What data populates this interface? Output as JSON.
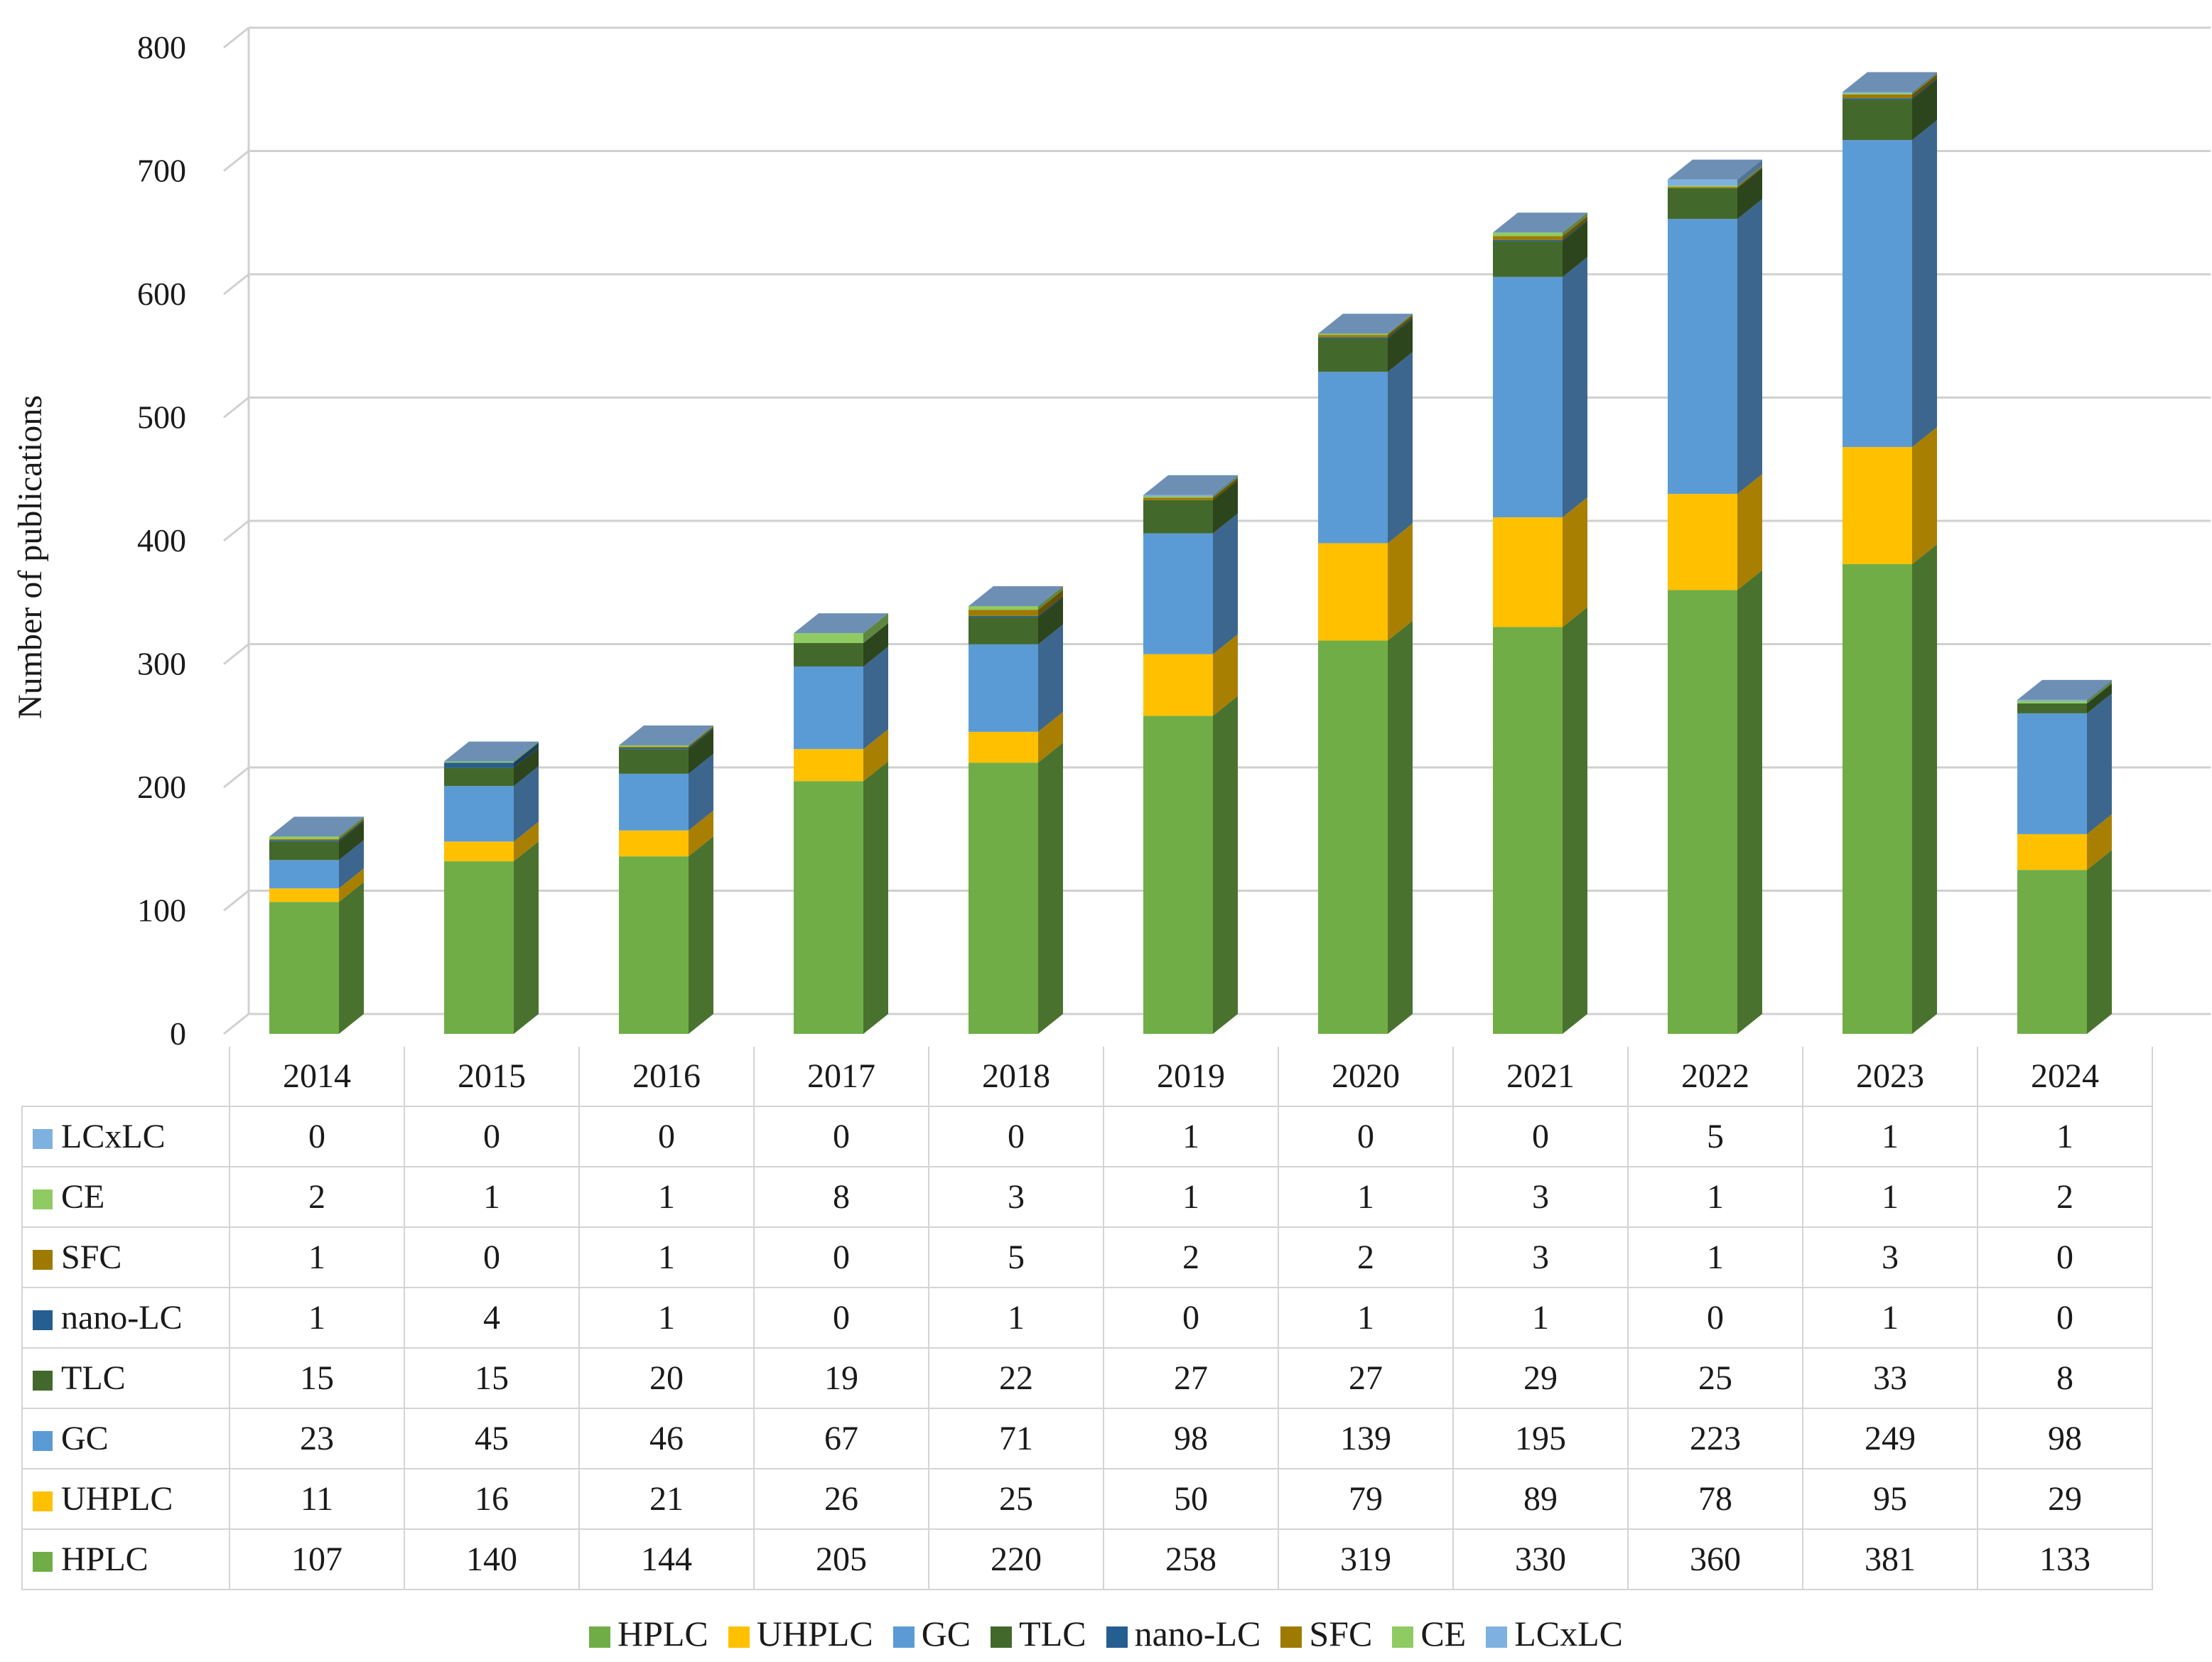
{
  "chart_data": {
    "type": "bar",
    "stacked": true,
    "ylabel": "Number of publications",
    "xlabel": "",
    "ylim": [
      0,
      800
    ],
    "yticks": [
      0,
      100,
      200,
      300,
      400,
      500,
      600,
      700,
      800
    ],
    "grid": true,
    "legend_position": "bottom",
    "categories": [
      "2014",
      "2015",
      "2016",
      "2017",
      "2018",
      "2019",
      "2020",
      "2021",
      "2022",
      "2023",
      "2024"
    ],
    "series": [
      {
        "name": "HPLC",
        "color": "#70AD47",
        "values": [
          107,
          140,
          144,
          205,
          220,
          258,
          319,
          330,
          360,
          381,
          133
        ]
      },
      {
        "name": "UHPLC",
        "color": "#FFC000",
        "values": [
          11,
          16,
          21,
          26,
          25,
          50,
          79,
          89,
          78,
          95,
          29
        ]
      },
      {
        "name": "GC",
        "color": "#5B9BD5",
        "values": [
          23,
          45,
          46,
          67,
          71,
          98,
          139,
          195,
          223,
          249,
          98
        ]
      },
      {
        "name": "TLC",
        "color": "#43682B",
        "values": [
          15,
          15,
          20,
          19,
          22,
          27,
          27,
          29,
          25,
          33,
          8
        ]
      },
      {
        "name": "nano-LC",
        "color": "#255E91",
        "values": [
          1,
          4,
          1,
          0,
          1,
          0,
          1,
          1,
          0,
          1,
          0
        ]
      },
      {
        "name": "SFC",
        "color": "#9E7A00",
        "values": [
          1,
          0,
          1,
          0,
          5,
          2,
          2,
          3,
          1,
          3,
          0
        ]
      },
      {
        "name": "CE",
        "color": "#8FCB62",
        "values": [
          2,
          1,
          1,
          8,
          3,
          1,
          1,
          3,
          1,
          1,
          2
        ]
      },
      {
        "name": "LCxLC",
        "color": "#7EB1E0",
        "values": [
          0,
          0,
          0,
          0,
          0,
          1,
          0,
          0,
          5,
          1,
          1
        ]
      }
    ]
  }
}
